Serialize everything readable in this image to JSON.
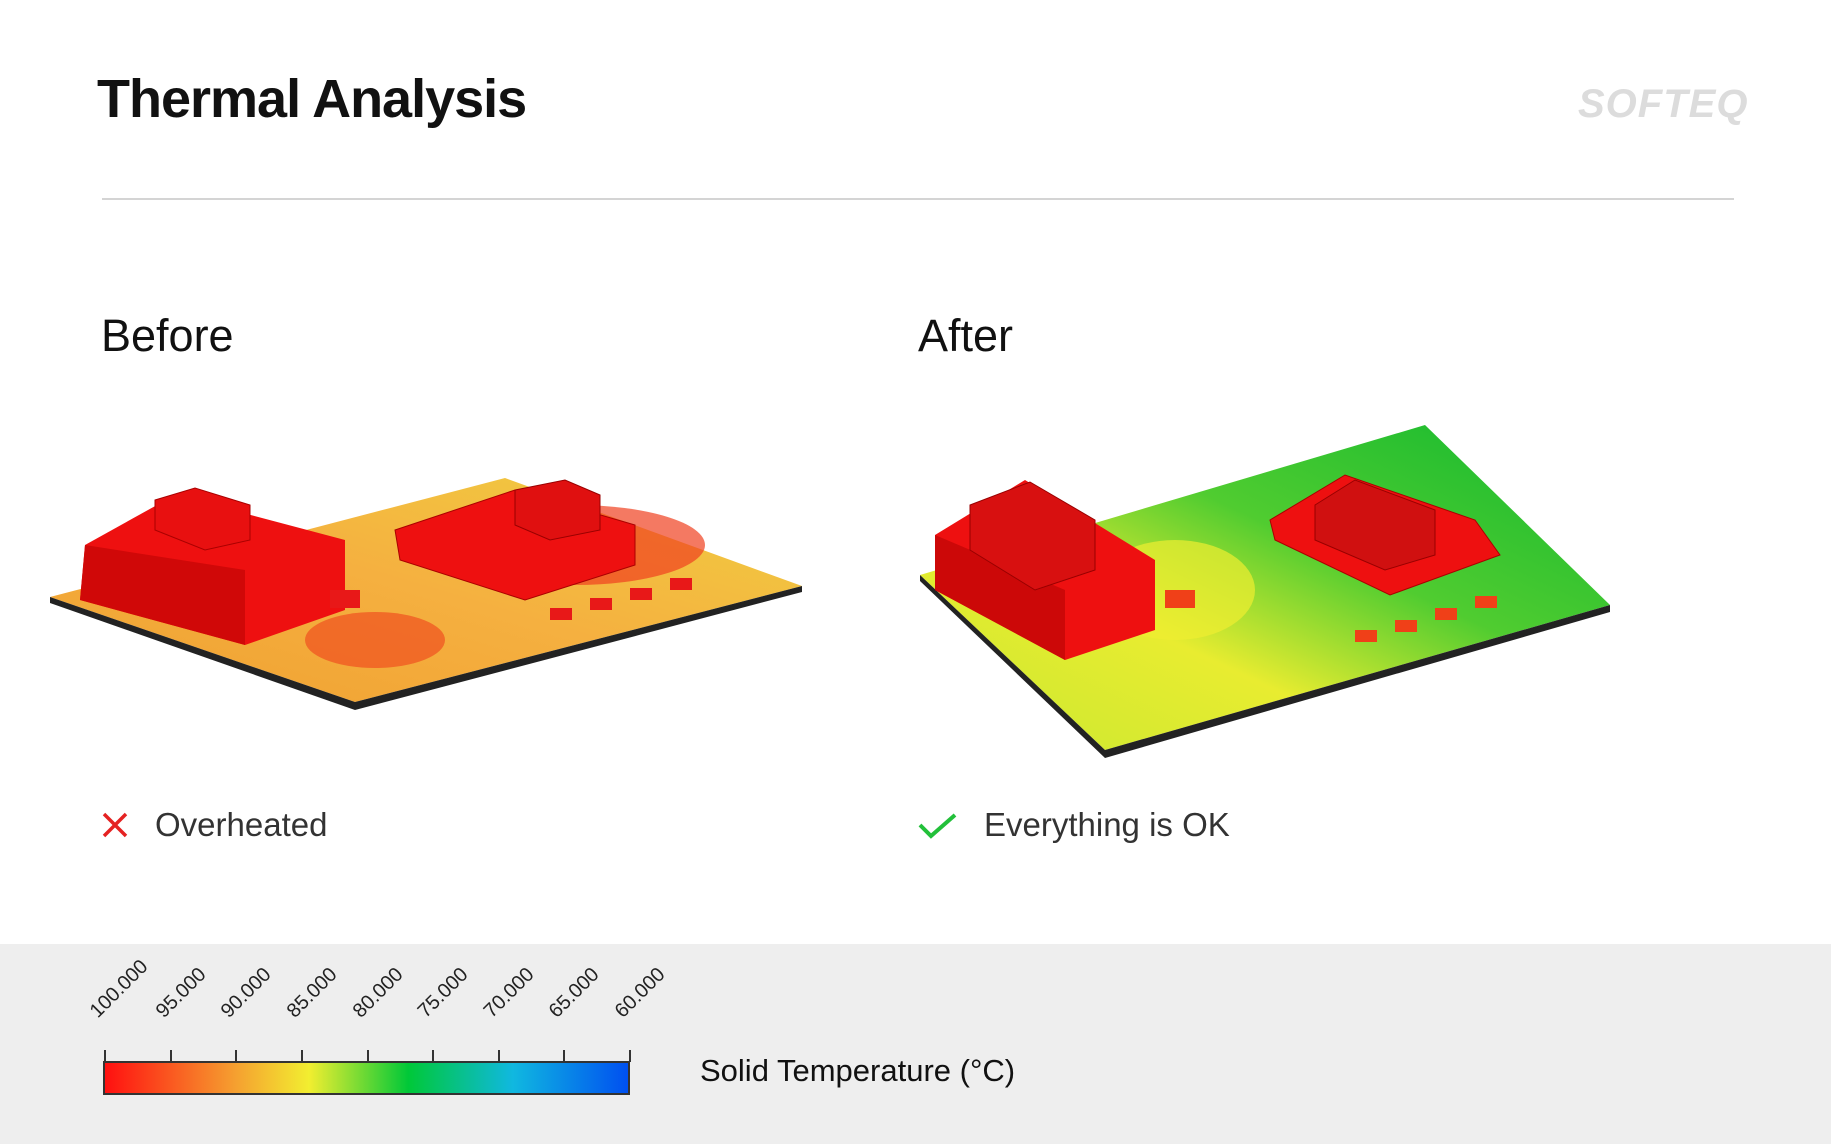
{
  "header": {
    "title": "Thermal Analysis",
    "logo": "SOFTEQ"
  },
  "before": {
    "heading": "Before",
    "status": "Overheated",
    "status_icon": "cross-icon",
    "status_color": "#e52222"
  },
  "after": {
    "heading": "After",
    "status": "Everything is OK",
    "status_icon": "check-icon",
    "status_color": "#22c03a"
  },
  "legend": {
    "label": "Solid Temperature (°C)",
    "ticks": [
      "100.000",
      "95.000",
      "90.000",
      "85.000",
      "80.000",
      "75.000",
      "70.000",
      "65.000",
      "60.000"
    ],
    "colors": [
      "#ff1010",
      "#f5a030",
      "#f2ee30",
      "#00c838",
      "#10b8e0",
      "#0050f0"
    ]
  }
}
